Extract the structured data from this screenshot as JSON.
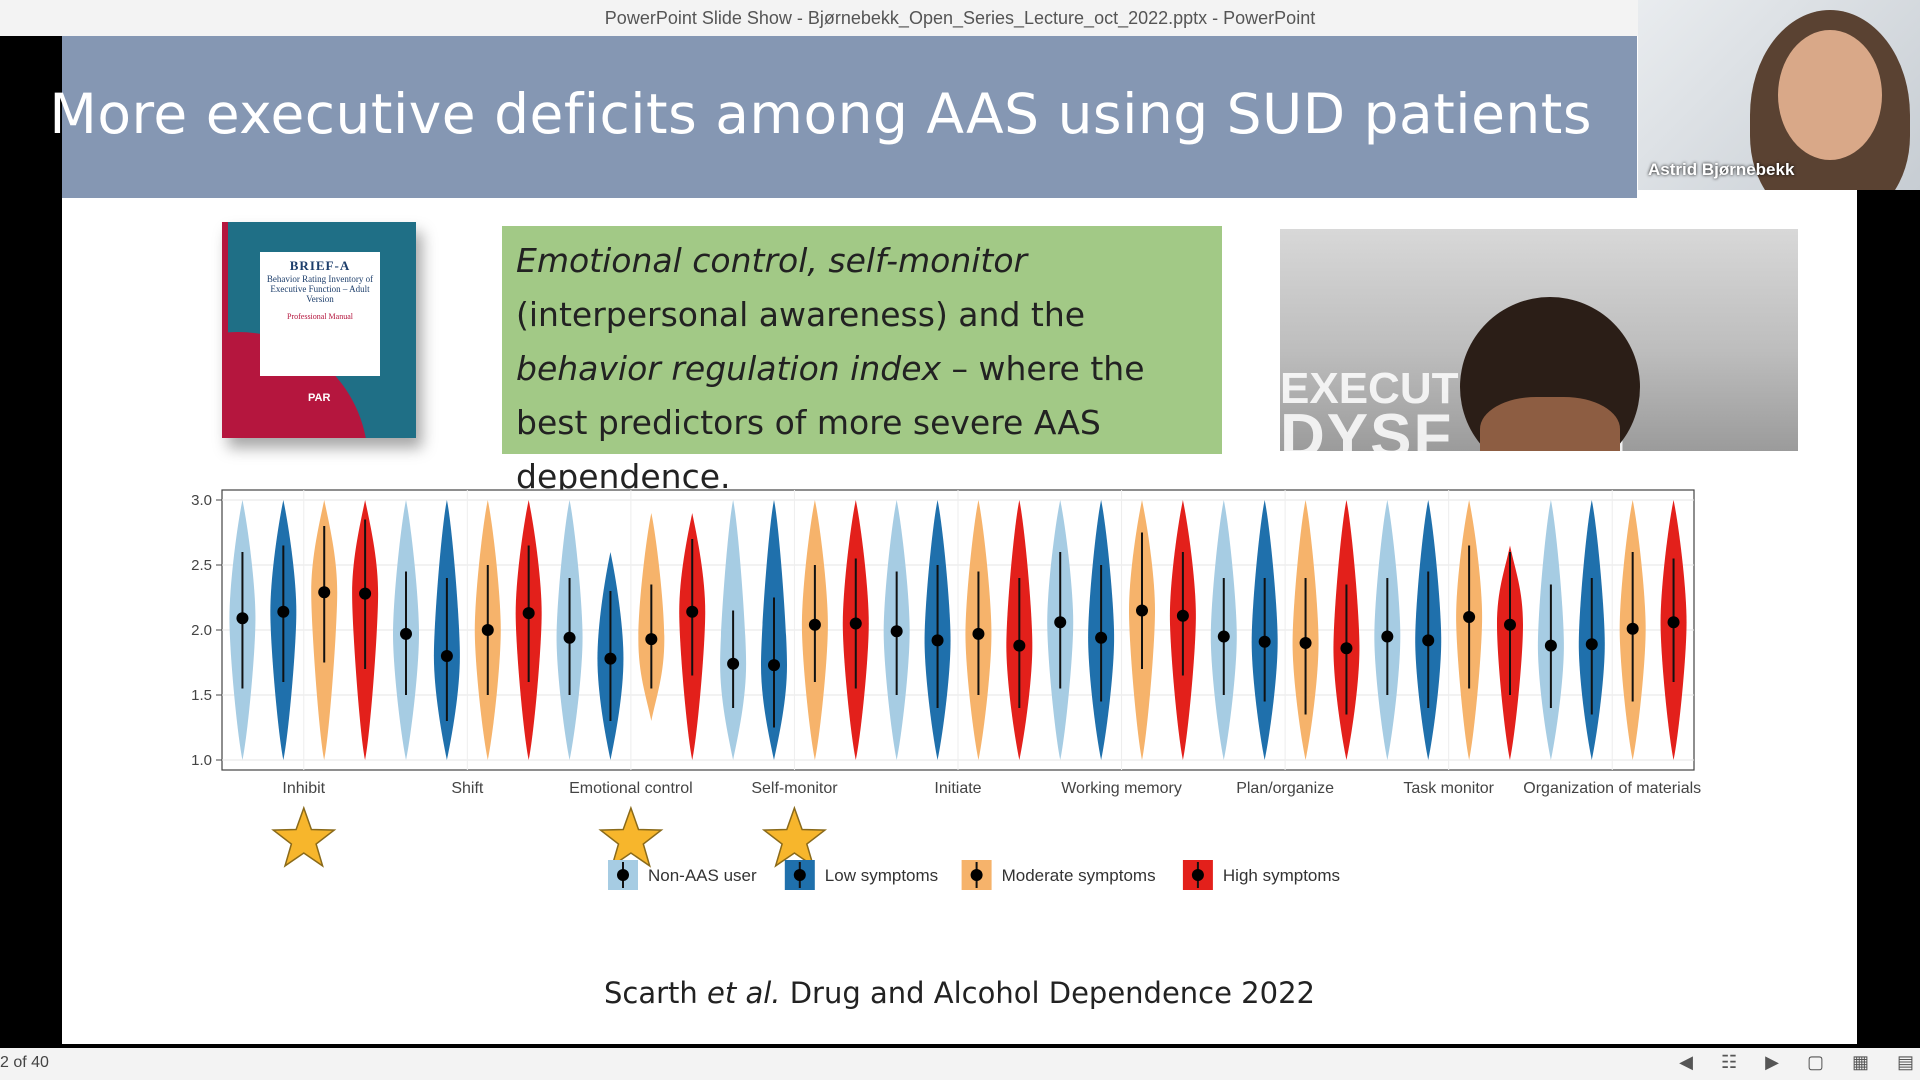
{
  "window": {
    "title": "PowerPoint Slide Show  -  Bjørnebekk_Open_Series_Lecture_oct_2022.pptx - PowerPoint"
  },
  "slide": {
    "title": "More executive deficits among AAS using SUD patients",
    "book": {
      "name": "BRIEF-A",
      "subtitle": "Behavior Rating Inventory of Executive Function – Adult Version",
      "manual": "Professional Manual",
      "publisher": "PAR"
    },
    "box_text": {
      "italic1": "Emotional control, self-monitor",
      "plain1": " (interpersonal awareness) and the ",
      "italic2": "behavior regulation index",
      "plain2": " – where the best predictors of more severe AAS dependence."
    },
    "photo_words": {
      "line1": "EXECUTI",
      "line2": "DYSF TION"
    },
    "citation": {
      "author": "Scarth ",
      "etal": "et al.",
      "rest": " Drug and Alcohol Dependence 2022"
    }
  },
  "chart_data": {
    "type": "violin",
    "title": "",
    "xlabel": "",
    "ylabel": "",
    "ylim": [
      1.0,
      3.0
    ],
    "yticks": [
      "1.0",
      "1.5",
      "2.0",
      "2.5",
      "3.0"
    ],
    "categories": [
      "Inhibit",
      "Shift",
      "Emotional control",
      "Self-monitor",
      "Initiate",
      "Working memory",
      "Plan/organize",
      "Task monitor",
      "Organization of materials"
    ],
    "starred": [
      "Inhibit",
      "Emotional control",
      "Self-monitor"
    ],
    "series": [
      {
        "name": "Non-AAS user",
        "color": "#a6cce3",
        "means": [
          2.09,
          1.97,
          1.94,
          1.74,
          1.99,
          2.06,
          1.95,
          1.95,
          1.88
        ],
        "ci_low": [
          1.55,
          1.5,
          1.5,
          1.4,
          1.5,
          1.55,
          1.5,
          1.5,
          1.4
        ],
        "ci_high": [
          2.6,
          2.45,
          2.4,
          2.15,
          2.45,
          2.6,
          2.4,
          2.4,
          2.35
        ],
        "min": [
          1.0,
          1.0,
          1.0,
          1.0,
          1.0,
          1.0,
          1.0,
          1.0,
          1.0
        ],
        "max": [
          3.0,
          3.0,
          3.0,
          3.0,
          3.0,
          3.0,
          3.0,
          3.0,
          3.0
        ]
      },
      {
        "name": "Low symptoms",
        "color": "#1f70ac",
        "means": [
          2.14,
          1.8,
          1.78,
          1.73,
          1.92,
          1.94,
          1.91,
          1.92,
          1.89
        ],
        "ci_low": [
          1.6,
          1.3,
          1.3,
          1.25,
          1.4,
          1.45,
          1.45,
          1.4,
          1.35
        ],
        "ci_high": [
          2.65,
          2.4,
          2.3,
          2.25,
          2.5,
          2.5,
          2.4,
          2.45,
          2.4
        ],
        "min": [
          1.0,
          1.0,
          1.0,
          1.0,
          1.0,
          1.0,
          1.0,
          1.0,
          1.0
        ],
        "max": [
          3.0,
          3.0,
          2.6,
          3.0,
          3.0,
          3.0,
          3.0,
          3.0,
          3.0
        ]
      },
      {
        "name": "Moderate symptoms",
        "color": "#f6b36b",
        "means": [
          2.29,
          2.0,
          1.93,
          2.04,
          1.97,
          2.15,
          1.9,
          2.1,
          2.01
        ],
        "ci_low": [
          1.75,
          1.5,
          1.55,
          1.6,
          1.5,
          1.7,
          1.35,
          1.55,
          1.45
        ],
        "ci_high": [
          2.8,
          2.5,
          2.35,
          2.5,
          2.45,
          2.75,
          2.4,
          2.65,
          2.6
        ],
        "min": [
          1.0,
          1.0,
          1.3,
          1.0,
          1.0,
          1.0,
          1.0,
          1.0,
          1.0
        ],
        "max": [
          3.0,
          3.0,
          2.9,
          3.0,
          3.0,
          3.0,
          3.0,
          3.0,
          3.0
        ]
      },
      {
        "name": "High symptoms",
        "color": "#e3201b",
        "means": [
          2.28,
          2.13,
          2.14,
          2.05,
          1.88,
          2.11,
          1.86,
          2.04,
          2.06
        ],
        "ci_low": [
          1.7,
          1.6,
          1.65,
          1.55,
          1.4,
          1.65,
          1.35,
          1.5,
          1.6
        ],
        "ci_high": [
          2.85,
          2.65,
          2.7,
          2.55,
          2.4,
          2.6,
          2.35,
          2.6,
          2.55
        ],
        "min": [
          1.0,
          1.0,
          1.0,
          1.0,
          1.0,
          1.0,
          1.0,
          1.0,
          1.0
        ],
        "max": [
          3.0,
          3.0,
          2.9,
          3.0,
          3.0,
          3.0,
          3.0,
          2.65,
          3.0
        ]
      }
    ]
  },
  "presenter": {
    "name": "Astrid Bjørnebekk"
  },
  "statusbar": {
    "slide_counter": "2 of 40"
  }
}
